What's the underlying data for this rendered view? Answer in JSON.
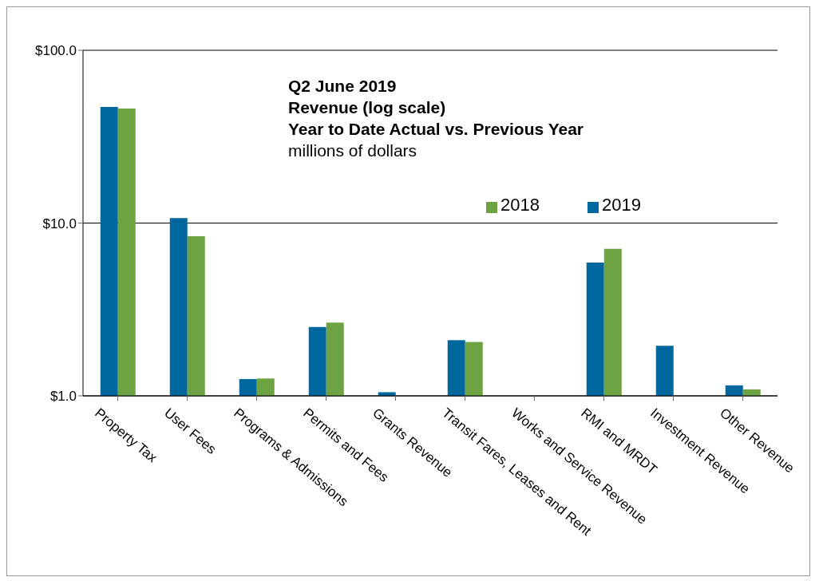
{
  "chart_data": {
    "type": "bar",
    "title": "Q2 June 2019\nRevenue (log scale)\nYear to Date Actual vs. Previous Year",
    "subtitle": "millions of dollars",
    "categories": [
      "Property Tax",
      "User Fees",
      "Programs & Admissions",
      "Permits and Fees",
      "Grants Revenue",
      "Transit Fares, Leases and Rent",
      "Works and Service Revenue",
      "RMI and MRDT",
      "Investment Revenue",
      "Other Revenue"
    ],
    "series": [
      {
        "name": "2019",
        "color": "#00679e",
        "values": [
          47,
          10.7,
          1.25,
          2.5,
          1.05,
          2.1,
          1.0,
          5.9,
          1.95,
          1.15
        ]
      },
      {
        "name": "2018",
        "color": "#6ea344",
        "values": [
          46,
          8.4,
          1.26,
          2.65,
          1.0,
          2.05,
          1.0,
          7.1,
          1.0,
          1.09
        ]
      }
    ],
    "log": true,
    "ylim": [
      1,
      100
    ],
    "yticks": [
      {
        "value": 1,
        "label": "$1.0"
      },
      {
        "value": 10,
        "label": "$10.0"
      },
      {
        "value": 100,
        "label": "$100.0"
      }
    ],
    "grid": "y",
    "legend": "top right"
  }
}
